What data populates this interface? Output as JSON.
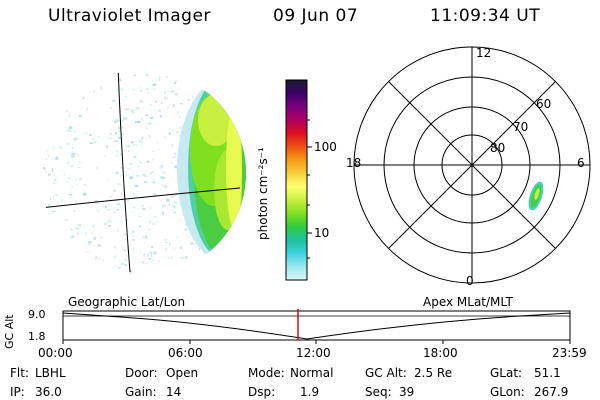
{
  "header": {
    "instrument": "Ultraviolet Imager",
    "date": "09 Jun 07",
    "time": "11:09:34 UT"
  },
  "colors": {
    "bg": "#ffffff",
    "line": "#000000",
    "time_marker": "#cc0000"
  },
  "colorbar": {
    "unit_label": "photon cm⁻²s⁻¹",
    "ticks": [
      "100",
      "10"
    ],
    "stops": [
      "#1a1a2e",
      "#3b0066",
      "#7a0080",
      "#b00060",
      "#dd1020",
      "#ee5010",
      "#f79a18",
      "#f7d040",
      "#ffff70",
      "#c8f040",
      "#80e020",
      "#30cc40",
      "#20c0a0",
      "#40d0e0",
      "#9ae8f0",
      "#dcf4f8"
    ]
  },
  "polar": {
    "mlt_labels": {
      "top": "12",
      "left": "18",
      "right": "6",
      "bottom": "0"
    },
    "lat_labels": [
      "60",
      "70",
      "80"
    ]
  },
  "altitude_plot": {
    "ylabel": "GC Alt",
    "ytick_top": "9.0",
    "ytick_bottom": "1.8",
    "left_title": "Geographic Lat/Lon",
    "right_title": "Apex MLat/MLT",
    "x_ticks": [
      "00:00",
      "06:00",
      "12:00",
      "18:00",
      "23:59"
    ]
  },
  "footer": {
    "rows": [
      [
        {
          "k": "Flt:",
          "v": "LBHL"
        },
        {
          "k": "Door:",
          "v": "Open"
        },
        {
          "k": "Mode:",
          "v": "Normal"
        },
        {
          "k": "GC Alt:",
          "v": "2.5 Re"
        },
        {
          "k": "GLat:",
          "v": "51.1"
        }
      ],
      [
        {
          "k": "IP:",
          "v": "36.0"
        },
        {
          "k": "Gain:",
          "v": "14"
        },
        {
          "k": "Dsp:",
          "v": "1.9"
        },
        {
          "k": "Seq:",
          "v": "39"
        },
        {
          "k": "GLon:",
          "v": "267.9"
        }
      ]
    ]
  }
}
